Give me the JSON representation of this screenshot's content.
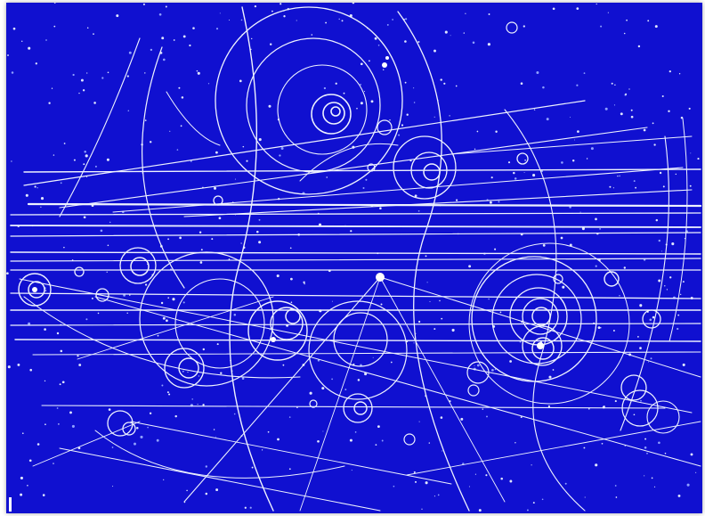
{
  "image": {
    "subject": "bubble-chamber-particle-tracks",
    "background_color": "#1010d0",
    "track_color": "#eef2ff"
  }
}
